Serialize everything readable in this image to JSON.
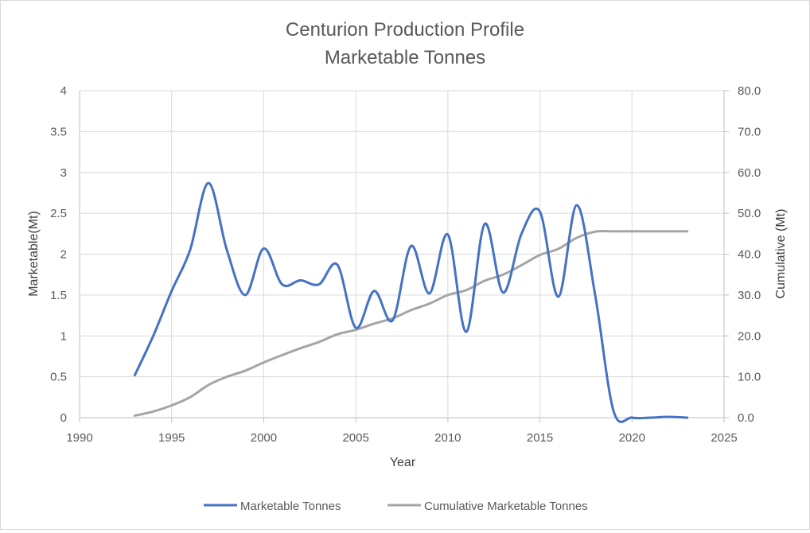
{
  "chart_data": {
    "type": "line",
    "title": [
      "Centurion Production Profile",
      "Marketable Tonnes"
    ],
    "xlabel": "Year",
    "ylabel": "Marketable(Mt)",
    "y2label": "Cumulative (Mt)",
    "xlim": [
      1990,
      2025
    ],
    "ylim": [
      0,
      4
    ],
    "y2lim": [
      0,
      80
    ],
    "x_ticks": [
      "1990",
      "1995",
      "2000",
      "2005",
      "2010",
      "2015",
      "2020",
      "2025"
    ],
    "y_ticks": [
      "0",
      "0.5",
      "1",
      "1.5",
      "2",
      "2.5",
      "3",
      "3.5",
      "4"
    ],
    "y2_ticks": [
      "0.0",
      "10.0",
      "20.0",
      "30.0",
      "40.0",
      "50.0",
      "60.0",
      "70.0",
      "80.0"
    ],
    "grid": true,
    "legend_position": "bottom",
    "x": [
      1993,
      1994,
      1995,
      1996,
      1997,
      1998,
      1999,
      2000,
      2001,
      2002,
      2003,
      2004,
      2005,
      2006,
      2007,
      2008,
      2009,
      2010,
      2011,
      2012,
      2013,
      2014,
      2015,
      2016,
      2017,
      2018,
      2019,
      2020,
      2021,
      2022,
      2023
    ],
    "series": [
      {
        "name": "Marketable Tonnes",
        "axis": "left",
        "color": "#4472c4",
        "values": [
          0.52,
          1.0,
          1.55,
          2.05,
          2.87,
          2.05,
          1.5,
          2.07,
          1.63,
          1.68,
          1.63,
          1.87,
          1.1,
          1.55,
          1.19,
          2.1,
          1.52,
          2.24,
          1.05,
          2.37,
          1.53,
          2.25,
          2.52,
          1.48,
          2.6,
          1.5,
          0.08,
          0.0,
          0.0,
          0.01,
          0.0
        ]
      },
      {
        "name": "Cumulative Marketable Tonnes",
        "axis": "right",
        "color": "#a5a5a5",
        "values": [
          0.5,
          1.5,
          3.0,
          5.0,
          8.0,
          10.0,
          11.5,
          13.5,
          15.3,
          17.0,
          18.5,
          20.4,
          21.5,
          23.0,
          24.3,
          26.3,
          27.9,
          30.0,
          31.2,
          33.5,
          35.0,
          37.3,
          39.8,
          41.3,
          44.0,
          45.5,
          45.6,
          45.6,
          45.6,
          45.6,
          45.6
        ]
      }
    ]
  }
}
